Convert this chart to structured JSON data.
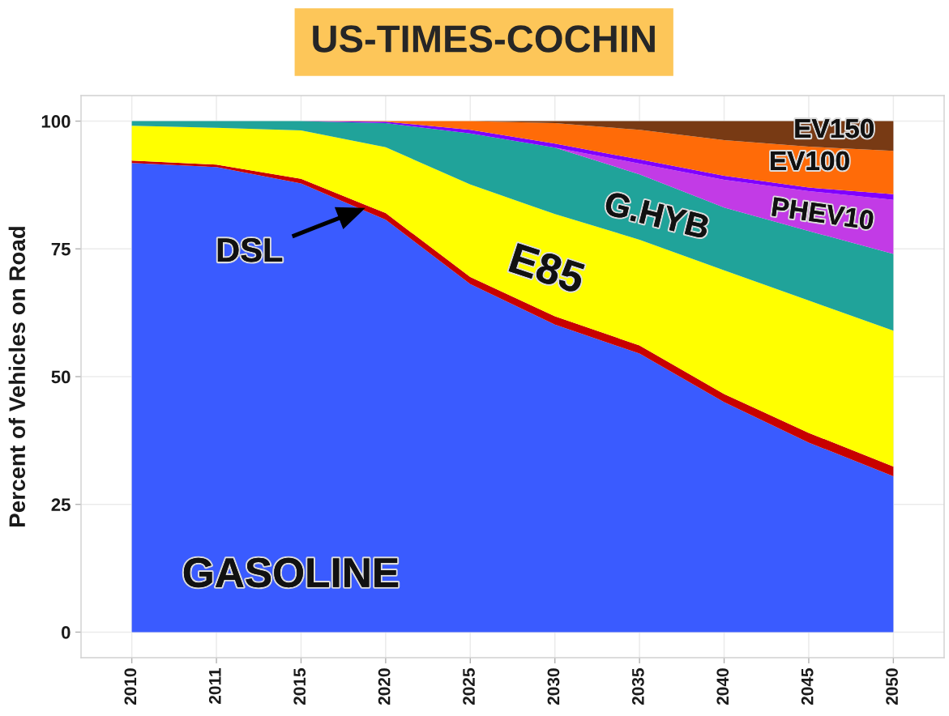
{
  "chart_data": {
    "type": "area",
    "title": "US-TIMES-COCHIN",
    "ylabel": "Percent of Vehicles on Road",
    "categories": [
      "2010",
      "2011",
      "2015",
      "2020",
      "2025",
      "2030",
      "2035",
      "2040",
      "2045",
      "2050"
    ],
    "stacked": true,
    "ylim": [
      -5,
      105
    ],
    "yticks": [
      0,
      25,
      50,
      75,
      100
    ],
    "grid": true,
    "series": [
      {
        "name": "GASOLINE",
        "color": "#3a5bff",
        "values": [
          91.8,
          91.0,
          87.8,
          80.7,
          68.1,
          60.2,
          54.5,
          45.0,
          37.1,
          30.5
        ]
      },
      {
        "name": "DSL",
        "color": "#c80000",
        "values": [
          0.5,
          0.5,
          0.9,
          1.3,
          1.4,
          1.6,
          1.6,
          1.6,
          1.9,
          1.9
        ]
      },
      {
        "name": "E85",
        "color": "#ffff00",
        "values": [
          6.8,
          7.2,
          9.5,
          12.9,
          18.1,
          20.0,
          20.7,
          24.2,
          25.9,
          26.6
        ]
      },
      {
        "name": "G.HYB",
        "color": "#20a39a",
        "values": [
          0.9,
          1.3,
          1.8,
          4.7,
          10.0,
          13.0,
          12.8,
          12.3,
          13.6,
          15.0
        ]
      },
      {
        "name": "PHEV10",
        "color": "#c23be6",
        "values": [
          0,
          0,
          0,
          0,
          0,
          0,
          2.1,
          5.4,
          7.8,
          10.6
        ]
      },
      {
        "color": "#8000ff",
        "values": [
          0,
          0,
          0,
          0.3,
          0.7,
          0.8,
          0.8,
          0.8,
          0.7,
          1.1
        ]
      },
      {
        "name": "EV100",
        "color": "#ff6b08",
        "values": [
          0,
          0,
          0,
          0.1,
          1.7,
          4.0,
          5.8,
          7.0,
          8.0,
          8.5
        ]
      },
      {
        "name": "EV150",
        "color": "#783a14",
        "values": [
          0,
          0,
          0,
          0,
          0,
          0.4,
          1.7,
          3.7,
          5.0,
          5.8
        ]
      }
    ]
  }
}
